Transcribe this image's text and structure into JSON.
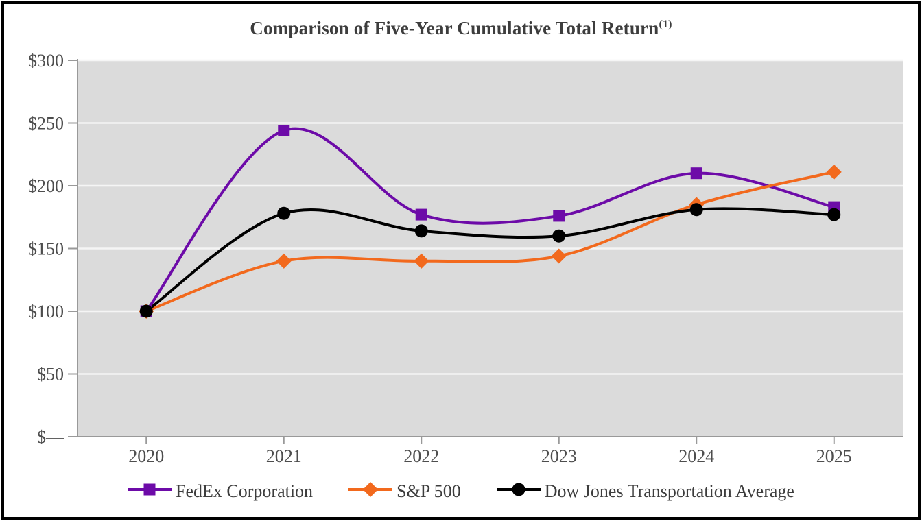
{
  "chart_data": {
    "type": "line",
    "title": "Comparison of Five-Year Cumulative Total Return",
    "title_superscript": "(1)",
    "categories": [
      "2020",
      "2021",
      "2022",
      "2023",
      "2024",
      "2025"
    ],
    "series": [
      {
        "name": "FedEx Corporation",
        "color": "#6D0BA8",
        "marker": "square",
        "values": [
          100,
          244,
          177,
          176,
          210,
          183
        ]
      },
      {
        "name": "S&P 500",
        "color": "#F2691D",
        "marker": "diamond",
        "values": [
          100,
          140,
          140,
          144,
          185,
          211
        ]
      },
      {
        "name": "Dow Jones Transportation Average",
        "color": "#000000",
        "marker": "circle",
        "values": [
          100,
          178,
          164,
          160,
          181,
          177
        ]
      }
    ],
    "y_axis": {
      "min": 0,
      "max": 300,
      "ticks": [
        0,
        50,
        100,
        150,
        200,
        250,
        300
      ],
      "tick_labels": [
        "$—",
        "$50",
        "$100",
        "$150",
        "$200",
        "$250",
        "$300"
      ]
    },
    "grid": "horizontal",
    "legend_position": "bottom",
    "smoothed_lines": true,
    "colors": {
      "plot_background": "#DBDBDB",
      "gridline": "#F5F5F5",
      "axis": "#999999",
      "tick_label_text": "#4d4d4d",
      "title_text": "#3d3d3d",
      "frame_border": "#000000"
    }
  }
}
